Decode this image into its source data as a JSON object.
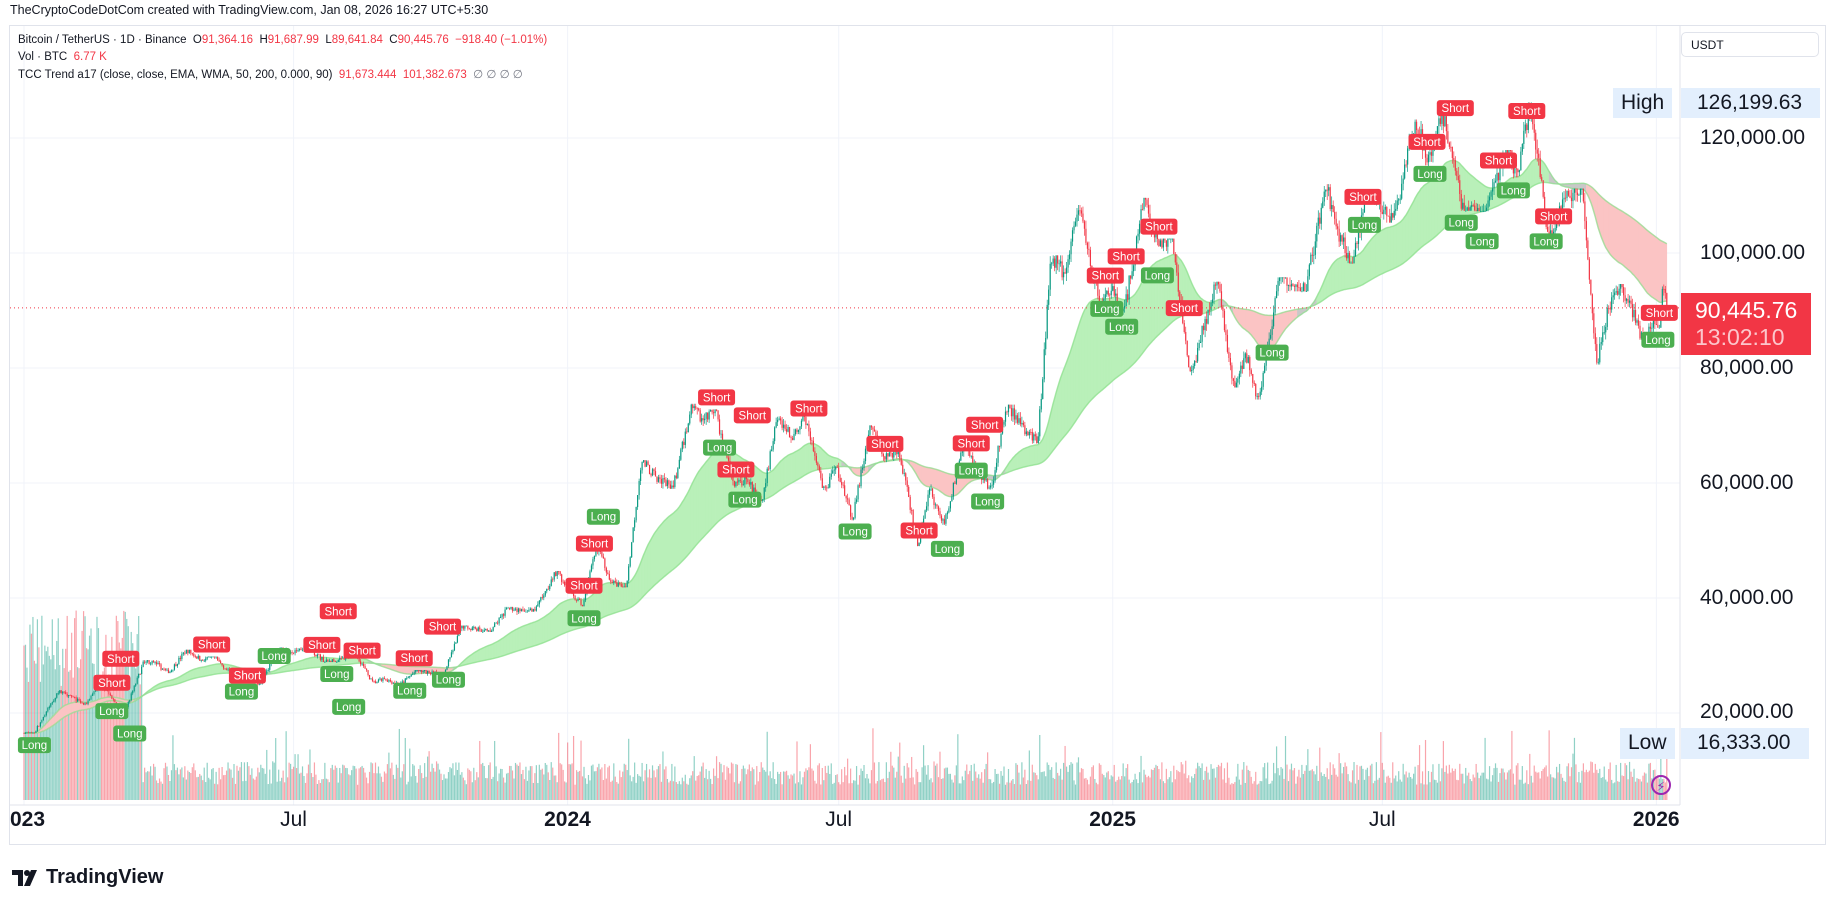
{
  "attribution": "TheCryptoCodeDotCom created with TradingView.com, Jan 08, 2026 16:27 UTC+5:30",
  "legend": {
    "symbol": "Bitcoin / TetherUS · 1D · Binance",
    "o_label": "O",
    "o": "91,364.16",
    "h_label": "H",
    "h": "91,687.99",
    "l_label": "L",
    "l": "89,641.84",
    "c_label": "C",
    "c": "90,445.76",
    "change": "−918.40 (−1.01%)",
    "vol_label": "Vol · BTC",
    "vol": "6.77 K",
    "indicator": "TCC Trend a17 (close, close, EMA, WMA, 50, 200, 0.000, 90)",
    "ind_v1": "91,673.444",
    "ind_v2": "101,382.673",
    "ind_empty": "∅ ∅ ∅ ∅"
  },
  "currency": "USDT",
  "high": {
    "label": "High",
    "value": "126,199.63"
  },
  "low": {
    "label": "Low",
    "value": "16,333.00"
  },
  "current": {
    "price": "90,445.76",
    "countdown": "13:02:10"
  },
  "brand": "TradingView",
  "colors": {
    "up": "#089981",
    "down": "#f23645",
    "long": "#4caf50",
    "short": "#f23645",
    "band_bull": "#b9f0b9",
    "band_bear": "#fbc4c4",
    "neutral": "#9e9e9e"
  },
  "chart_data": {
    "type": "candlestick",
    "interval": "1D",
    "price_ticks": [
      "120,000.00",
      "100,000.00",
      "80,000.00",
      "60,000.00",
      "40,000.00",
      "20,000.00"
    ],
    "price_tick_values": [
      120000,
      100000,
      80000,
      60000,
      40000,
      20000
    ],
    "time_ticks": [
      {
        "label": "023",
        "date": "2023-01-01",
        "bold": true
      },
      {
        "label": "Jul",
        "date": "2023-07-01",
        "bold": false
      },
      {
        "label": "2024",
        "date": "2024-01-01",
        "bold": true
      },
      {
        "label": "Jul",
        "date": "2024-07-01",
        "bold": false
      },
      {
        "label": "2025",
        "date": "2025-01-01",
        "bold": true
      },
      {
        "label": "Jul",
        "date": "2025-07-01",
        "bold": false
      },
      {
        "label": "2026",
        "date": "2026-01-01",
        "bold": true
      }
    ],
    "ylim": [
      16333,
      126199.63
    ],
    "grid": true,
    "monthly_ohlc": [
      [
        "2023-01",
        16530,
        23960,
        16500,
        23130
      ],
      [
        "2023-02",
        23130,
        25250,
        21350,
        23140
      ],
      [
        "2023-03",
        23140,
        29190,
        19550,
        28480
      ],
      [
        "2023-04",
        28480,
        31000,
        26940,
        29240
      ],
      [
        "2023-05",
        29240,
        29820,
        25810,
        27210
      ],
      [
        "2023-06",
        27210,
        31390,
        24800,
        30470
      ],
      [
        "2023-07",
        30470,
        31800,
        28860,
        29230
      ],
      [
        "2023-08",
        29230,
        30230,
        25170,
        25940
      ],
      [
        "2023-09",
        25940,
        27480,
        24900,
        26960
      ],
      [
        "2023-10",
        26960,
        35200,
        26550,
        34640
      ],
      [
        "2023-11",
        34640,
        38450,
        34100,
        37720
      ],
      [
        "2023-12",
        37720,
        44700,
        37620,
        42280
      ],
      [
        "2024-01",
        42280,
        48970,
        38560,
        42580
      ],
      [
        "2024-02",
        42580,
        63970,
        41880,
        61130
      ],
      [
        "2024-03",
        61130,
        73780,
        59000,
        71280
      ],
      [
        "2024-04",
        71280,
        72800,
        59190,
        60670
      ],
      [
        "2024-05",
        60670,
        71980,
        56550,
        67490
      ],
      [
        "2024-06",
        67490,
        71980,
        58400,
        62680
      ],
      [
        "2024-07",
        62680,
        70020,
        53490,
        64620
      ],
      [
        "2024-08",
        64620,
        65600,
        49000,
        58970
      ],
      [
        "2024-09",
        58970,
        66500,
        52550,
        63330
      ],
      [
        "2024-10",
        63330,
        73620,
        58870,
        70220
      ],
      [
        "2024-11",
        70220,
        99590,
        66830,
        96410
      ],
      [
        "2024-12",
        96410,
        108350,
        90500,
        93430
      ],
      [
        "2025-01",
        93430,
        109590,
        89260,
        102430
      ],
      [
        "2025-02",
        102430,
        102500,
        78250,
        84350
      ],
      [
        "2025-03",
        84350,
        95000,
        76610,
        82550
      ],
      [
        "2025-04",
        82550,
        95760,
        74510,
        94170
      ],
      [
        "2025-05",
        94170,
        111980,
        93330,
        104640
      ],
      [
        "2025-06",
        104640,
        110400,
        98200,
        107140
      ],
      [
        "2025-07",
        107140,
        123220,
        105280,
        115760
      ],
      [
        "2025-08",
        115760,
        124470,
        107350,
        108250
      ],
      [
        "2025-09",
        108250,
        117900,
        107260,
        114050
      ],
      [
        "2025-10",
        114050,
        126199.63,
        102000,
        109610
      ],
      [
        "2025-11",
        109610,
        111200,
        80600,
        90390
      ],
      [
        "2025-12",
        90390,
        94600,
        84450,
        87650
      ],
      [
        "2026-01",
        87650,
        94800,
        87000,
        90445.76
      ]
    ],
    "signals": [
      {
        "type": "Long",
        "date": "2023-01-08"
      },
      {
        "type": "Short",
        "date": "2023-03-01"
      },
      {
        "type": "Long",
        "date": "2023-03-01"
      },
      {
        "type": "Short",
        "date": "2023-03-07"
      },
      {
        "type": "Long",
        "date": "2023-03-13"
      },
      {
        "type": "Short",
        "date": "2023-05-07"
      },
      {
        "type": "Long",
        "date": "2023-05-27"
      },
      {
        "type": "Short",
        "date": "2023-05-31"
      },
      {
        "type": "Long",
        "date": "2023-06-18"
      },
      {
        "type": "Short",
        "date": "2023-07-20"
      },
      {
        "type": "Long",
        "date": "2023-07-30"
      },
      {
        "type": "Short",
        "date": "2023-07-31"
      },
      {
        "type": "Long",
        "date": "2023-08-07"
      },
      {
        "type": "Short",
        "date": "2023-08-16"
      },
      {
        "type": "Long",
        "date": "2023-09-17"
      },
      {
        "type": "Short",
        "date": "2023-09-20"
      },
      {
        "type": "Short",
        "date": "2023-10-09"
      },
      {
        "type": "Long",
        "date": "2023-10-13"
      },
      {
        "type": "Short",
        "date": "2024-01-12"
      },
      {
        "type": "Long",
        "date": "2024-01-12"
      },
      {
        "type": "Short",
        "date": "2024-01-19"
      },
      {
        "type": "Long",
        "date": "2024-01-25"
      },
      {
        "type": "Short",
        "date": "2024-04-10"
      },
      {
        "type": "Long",
        "date": "2024-04-12"
      },
      {
        "type": "Short",
        "date": "2024-04-23"
      },
      {
        "type": "Long",
        "date": "2024-04-29"
      },
      {
        "type": "Short",
        "date": "2024-05-04"
      },
      {
        "type": "Short",
        "date": "2024-06-11"
      },
      {
        "type": "Long",
        "date": "2024-07-12"
      },
      {
        "type": "Short",
        "date": "2024-08-01"
      },
      {
        "type": "Short",
        "date": "2024-08-24"
      },
      {
        "type": "Long",
        "date": "2024-09-12"
      },
      {
        "type": "Short",
        "date": "2024-09-28"
      },
      {
        "type": "Long",
        "date": "2024-09-28"
      },
      {
        "type": "Short",
        "date": "2024-10-07"
      },
      {
        "type": "Long",
        "date": "2024-10-09"
      },
      {
        "type": "Short",
        "date": "2024-12-27"
      },
      {
        "type": "Long",
        "date": "2024-12-28"
      },
      {
        "type": "Long",
        "date": "2025-01-07"
      },
      {
        "type": "Short",
        "date": "2025-01-10"
      },
      {
        "type": "Long",
        "date": "2025-01-31"
      },
      {
        "type": "Short",
        "date": "2025-02-01"
      },
      {
        "type": "Short",
        "date": "2025-02-18"
      },
      {
        "type": "Long",
        "date": "2025-04-18"
      },
      {
        "type": "Short",
        "date": "2025-06-18"
      },
      {
        "type": "Long",
        "date": "2025-06-19"
      },
      {
        "type": "Short",
        "date": "2025-07-31"
      },
      {
        "type": "Long",
        "date": "2025-08-02"
      },
      {
        "type": "Short",
        "date": "2025-08-19"
      },
      {
        "type": "Long",
        "date": "2025-08-23"
      },
      {
        "type": "Long",
        "date": "2025-09-06"
      },
      {
        "type": "Short",
        "date": "2025-09-17"
      },
      {
        "type": "Long",
        "date": "2025-09-27"
      },
      {
        "type": "Short",
        "date": "2025-10-06"
      },
      {
        "type": "Long",
        "date": "2025-10-19"
      },
      {
        "type": "Short",
        "date": "2025-10-24"
      },
      {
        "type": "Long",
        "date": "2026-01-02"
      },
      {
        "type": "Short",
        "date": "2026-01-03"
      }
    ]
  }
}
